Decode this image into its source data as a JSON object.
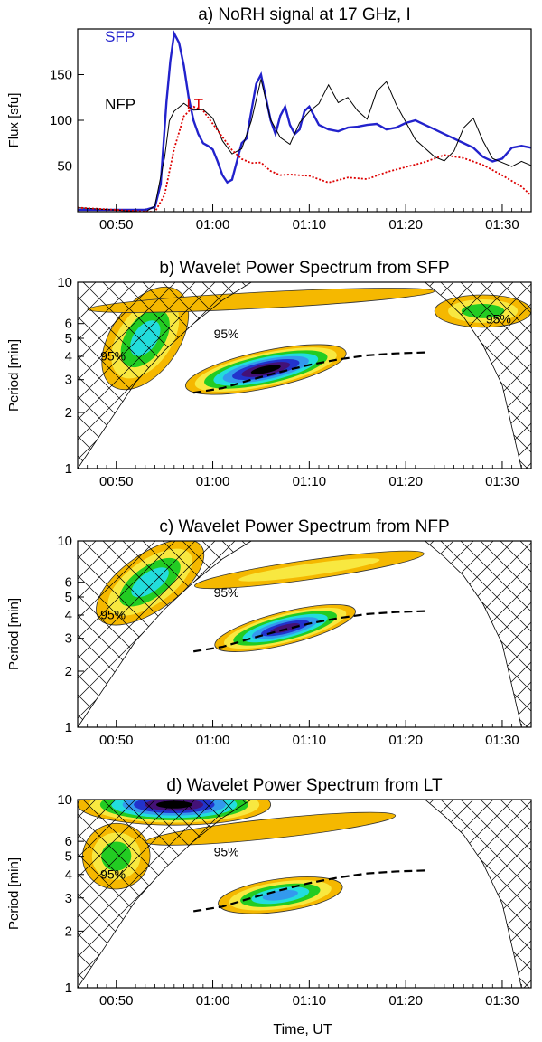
{
  "figure": {
    "x_tick_labels": [
      "00:50",
      "01:00",
      "01:10",
      "01:20",
      "01:30"
    ],
    "x_label": "Time, UT",
    "confidence_label": "95%"
  },
  "colors": {
    "sfp": "#2222cc",
    "nfp": "#000000",
    "lt": "#dd0000",
    "hatch": "#000000",
    "ridge": "#000000",
    "levels": [
      "#f5b800",
      "#f8e840",
      "#22cc22",
      "#22dddd",
      "#3399ee",
      "#2233cc",
      "#441177",
      "#000000"
    ]
  },
  "chart_data": [
    {
      "type": "line",
      "panel": "a",
      "title": "a) NoRH signal at 17 GHz, I",
      "xlabel": "",
      "ylabel": "Flux [sfu]",
      "xlim": [
        46,
        93
      ],
      "ylim": [
        0,
        200
      ],
      "y_ticks": [
        50,
        100,
        150
      ],
      "x_ticks": [
        50,
        60,
        70,
        80,
        90
      ],
      "series": [
        {
          "name": "SFP",
          "color_key": "sfp",
          "x": [
            46,
            53,
            54,
            54.6,
            55.2,
            55.6,
            56,
            56.5,
            57,
            57.5,
            58,
            58.5,
            59,
            59.5,
            60,
            60.5,
            61,
            61.5,
            62,
            62.5,
            63,
            63.5,
            64,
            64.5,
            65,
            65.5,
            66,
            66.5,
            67,
            67.5,
            68,
            68.5,
            69,
            69.5,
            70,
            71,
            72,
            73,
            74,
            75,
            76,
            77,
            78,
            79,
            80,
            81,
            82,
            83,
            84,
            85,
            86,
            87,
            88,
            89,
            90,
            91,
            92,
            93
          ],
          "y": [
            2,
            2,
            5,
            30,
            120,
            165,
            195,
            185,
            160,
            125,
            100,
            85,
            75,
            72,
            68,
            55,
            40,
            32,
            35,
            55,
            75,
            80,
            110,
            140,
            150,
            125,
            100,
            85,
            105,
            115,
            95,
            85,
            90,
            110,
            115,
            95,
            90,
            88,
            92,
            93,
            95,
            96,
            90,
            92,
            97,
            100,
            95,
            90,
            85,
            80,
            75,
            70,
            60,
            55,
            58,
            70,
            72,
            70
          ]
        },
        {
          "name": "NFP",
          "color_key": "nfp",
          "x": [
            46,
            53,
            54,
            55,
            55.5,
            56,
            57,
            58,
            59,
            60,
            61,
            62,
            63,
            64,
            65,
            66,
            67,
            68,
            69,
            70,
            71,
            72,
            73,
            74,
            75,
            76,
            77,
            78,
            79,
            80,
            81,
            82,
            83,
            84,
            85,
            86,
            87,
            88,
            89,
            90,
            91,
            92,
            93
          ],
          "y": [
            2,
            2,
            8,
            60,
            100,
            110,
            118,
            110,
            110,
            100,
            80,
            65,
            70,
            100,
            145,
            100,
            80,
            72,
            95,
            112,
            120,
            140,
            120,
            125,
            110,
            100,
            130,
            140,
            120,
            100,
            80,
            70,
            60,
            55,
            65,
            90,
            100,
            80,
            60,
            55,
            50,
            55,
            50
          ]
        },
        {
          "name": "LT",
          "color_key": "lt",
          "x": [
            46,
            54,
            55,
            56,
            57,
            58,
            59,
            60,
            61,
            62,
            63,
            64,
            65,
            66,
            67,
            68,
            70,
            72,
            74,
            76,
            78,
            80,
            82,
            84,
            86,
            88,
            90,
            92,
            93
          ],
          "y": [
            2,
            2,
            20,
            70,
            105,
            115,
            110,
            95,
            80,
            65,
            60,
            55,
            55,
            45,
            40,
            40,
            38,
            30,
            35,
            38,
            45,
            50,
            55,
            62,
            58,
            50,
            38,
            25,
            20
          ]
        }
      ],
      "labels": [
        {
          "text": "SFP",
          "color_key": "sfp"
        },
        {
          "text": "NFP",
          "color_key": "nfp"
        },
        {
          "text": "LT",
          "color_key": "lt"
        }
      ]
    },
    {
      "type": "heatmap",
      "panel": "b",
      "title": "b) Wavelet Power Spectrum from SFP",
      "ylabel": "Period [min]",
      "xlim": [
        46,
        93
      ],
      "ylim": [
        1,
        10
      ],
      "y_ticks": [
        1,
        2,
        3,
        4,
        5,
        6,
        10
      ],
      "ridge": {
        "x": [
          58,
          61,
          64,
          67,
          70,
          73,
          76,
          79,
          82
        ],
        "y": [
          2.55,
          2.7,
          3.0,
          3.3,
          3.6,
          3.85,
          4.05,
          4.15,
          4.2
        ]
      },
      "coi_left": {
        "x": [
          46,
          49,
          52,
          55,
          58,
          61,
          64
        ],
        "y": [
          1,
          1.7,
          2.9,
          4.3,
          6,
          8,
          10
        ]
      },
      "coi_right": {
        "x": [
          92,
          90,
          88,
          86,
          84,
          82
        ],
        "y": [
          1,
          2.8,
          4.6,
          6.5,
          8.2,
          10
        ]
      },
      "blobs": [
        {
          "cx": 65.5,
          "cy": 3.4,
          "rx": 8.5,
          "ry": 0.23,
          "angle": -12,
          "levels": 8
        },
        {
          "cx": 53,
          "cy": 5,
          "rx": 6,
          "ry": 0.42,
          "angle": -55,
          "levels": 4
        },
        {
          "cx": 88,
          "cy": 7,
          "rx": 5,
          "ry": 0.2,
          "angle": 0,
          "levels": 3
        },
        {
          "cx": 65,
          "cy": 8,
          "rx": 18,
          "ry": 0.1,
          "angle": -3,
          "levels": 1
        }
      ],
      "confidence_labels": 3
    },
    {
      "type": "heatmap",
      "panel": "c",
      "title": "c) Wavelet Power Spectrum from NFP",
      "ylabel": "Period [min]",
      "xlim": [
        46,
        93
      ],
      "ylim": [
        1,
        10
      ],
      "y_ticks": [
        1,
        2,
        3,
        4,
        5,
        6,
        10
      ],
      "ridge": {
        "x": [
          58,
          61,
          64,
          67,
          70,
          73,
          76,
          79,
          82
        ],
        "y": [
          2.55,
          2.7,
          3.0,
          3.3,
          3.6,
          3.85,
          4.05,
          4.15,
          4.2
        ]
      },
      "coi_left": {
        "x": [
          46,
          49,
          52,
          55,
          58,
          61,
          64
        ],
        "y": [
          1,
          1.7,
          2.9,
          4.3,
          6,
          8,
          10
        ]
      },
      "coi_right": {
        "x": [
          92,
          90,
          88,
          86,
          84,
          82
        ],
        "y": [
          1,
          2.8,
          4.6,
          6.5,
          8.2,
          10
        ]
      },
      "blobs": [
        {
          "cx": 67.5,
          "cy": 3.4,
          "rx": 7.5,
          "ry": 0.2,
          "angle": -14,
          "levels": 7
        },
        {
          "cx": 53.5,
          "cy": 6,
          "rx": 6.5,
          "ry": 0.35,
          "angle": -35,
          "levels": 4
        },
        {
          "cx": 70,
          "cy": 7,
          "rx": 12,
          "ry": 0.12,
          "angle": -8,
          "levels": 2
        }
      ],
      "confidence_labels": 2
    },
    {
      "type": "heatmap",
      "panel": "d",
      "title": "d) Wavelet Power Spectrum from LT",
      "ylabel": "Period [min]",
      "xlabel": "Time, UT",
      "xlim": [
        46,
        93
      ],
      "ylim": [
        1,
        10
      ],
      "y_ticks": [
        1,
        2,
        3,
        4,
        5,
        6,
        10
      ],
      "ridge": {
        "x": [
          58,
          61,
          64,
          67,
          70,
          73,
          76,
          79,
          82
        ],
        "y": [
          2.55,
          2.7,
          3.0,
          3.3,
          3.6,
          3.85,
          4.05,
          4.15,
          4.2
        ]
      },
      "coi_left": {
        "x": [
          46,
          49,
          52,
          55,
          58,
          61,
          64
        ],
        "y": [
          1,
          1.7,
          2.9,
          4.3,
          6,
          8,
          10
        ]
      },
      "coi_right": {
        "x": [
          92,
          90,
          88,
          86,
          84,
          82
        ],
        "y": [
          1,
          2.8,
          4.6,
          6.5,
          8.2,
          10
        ]
      },
      "blobs": [
        {
          "cx": 56,
          "cy": 9.4,
          "rx": 10,
          "ry": 0.25,
          "angle": 0,
          "levels": 8
        },
        {
          "cx": 50,
          "cy": 5,
          "rx": 3.5,
          "ry": 0.4,
          "angle": -20,
          "levels": 3
        },
        {
          "cx": 67,
          "cy": 3.1,
          "rx": 6.5,
          "ry": 0.2,
          "angle": -8,
          "levels": 5
        },
        {
          "cx": 66,
          "cy": 7,
          "rx": 13,
          "ry": 0.12,
          "angle": -6,
          "levels": 1
        }
      ],
      "confidence_labels": 2
    }
  ]
}
